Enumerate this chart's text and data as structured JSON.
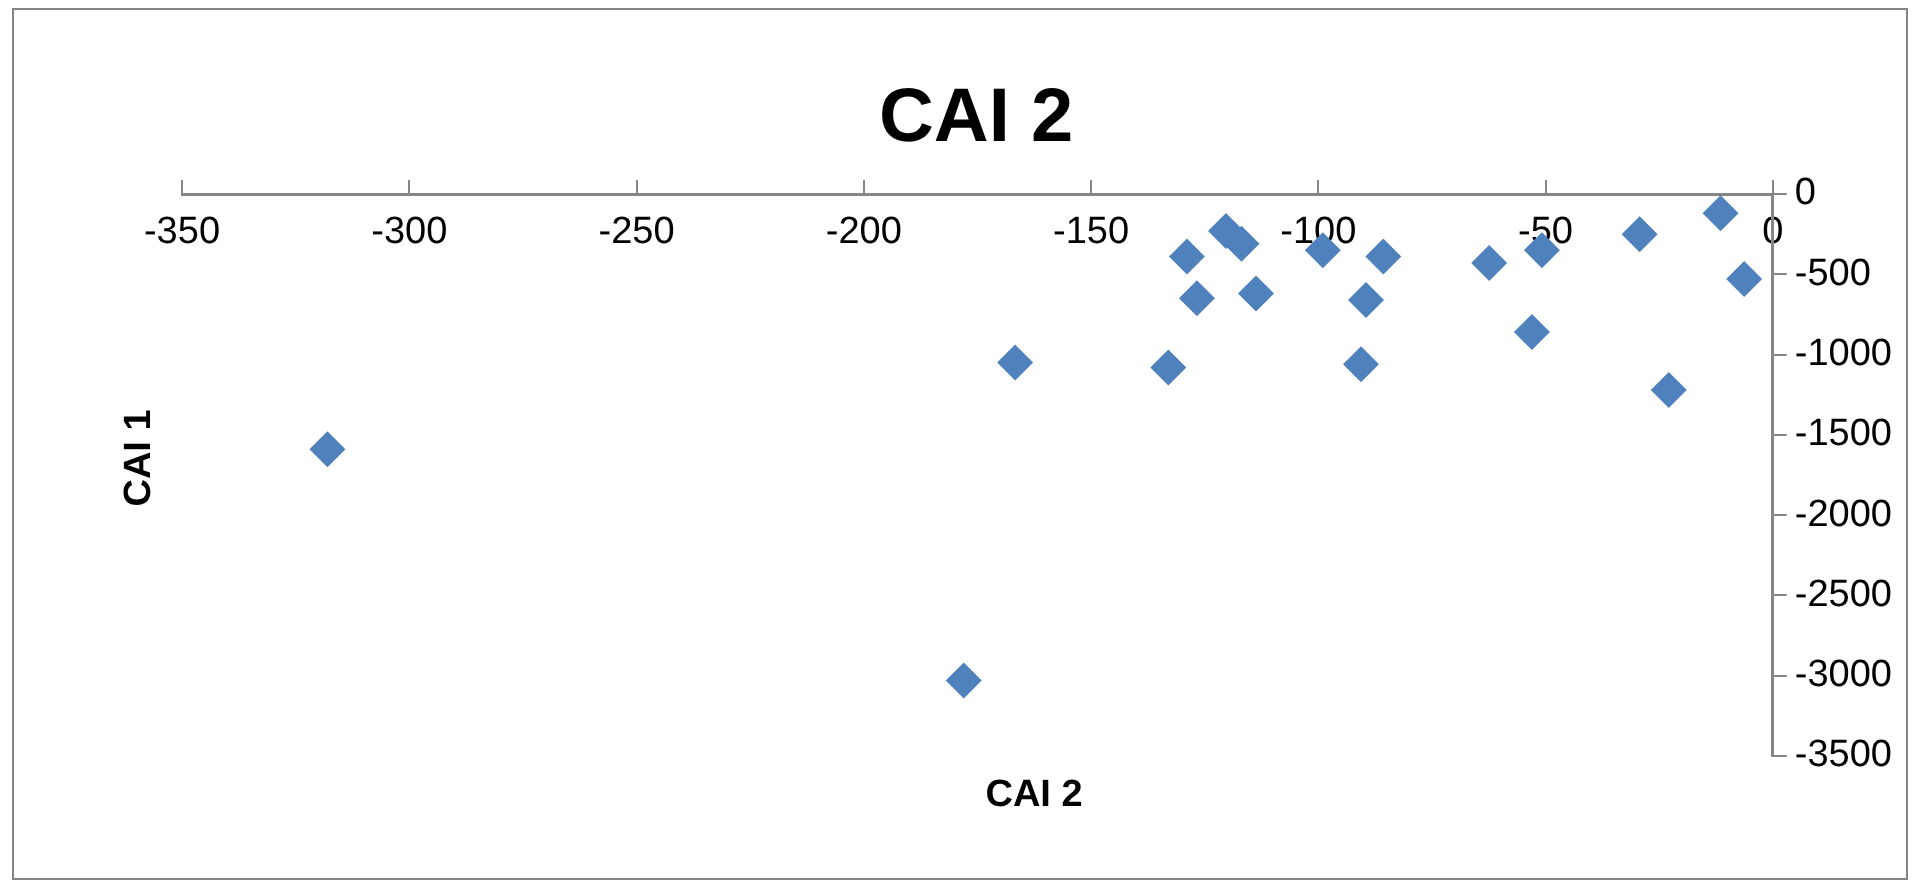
{
  "chart_data": {
    "type": "scatter",
    "title": "CAI 2",
    "xlabel": "CAI 2",
    "ylabel": "CAI 1",
    "x": [
      -318,
      -178,
      -166.7,
      -128.9,
      -126.7,
      -120.3,
      -116.9,
      -113.7,
      -133,
      -99,
      -85.7,
      -89.5,
      -90.6,
      -62.4,
      -50.8,
      -53,
      -29.3,
      -11.5,
      -6.3,
      -22.9
    ],
    "series": [
      {
        "color": "#4f81bd",
        "values": [
          -1590,
          -3030,
          -1050,
          -390,
          -650,
          -230,
          -310,
          -620,
          -1080,
          -350,
          -390,
          -660,
          -1060,
          -430,
          -350,
          -860,
          -250,
          -120,
          -530,
          -1220
        ]
      }
    ],
    "xlim": [
      -350,
      0
    ],
    "xticks": [
      -350,
      -300,
      -250,
      -200,
      -150,
      -100,
      -50,
      0
    ],
    "ylim": [
      -3500,
      0
    ],
    "yticks": [
      -3500,
      -3000,
      -2500,
      -2000,
      -1500,
      -1000,
      -500,
      0
    ],
    "marker": "diamond",
    "grid": false,
    "legend": false
  }
}
